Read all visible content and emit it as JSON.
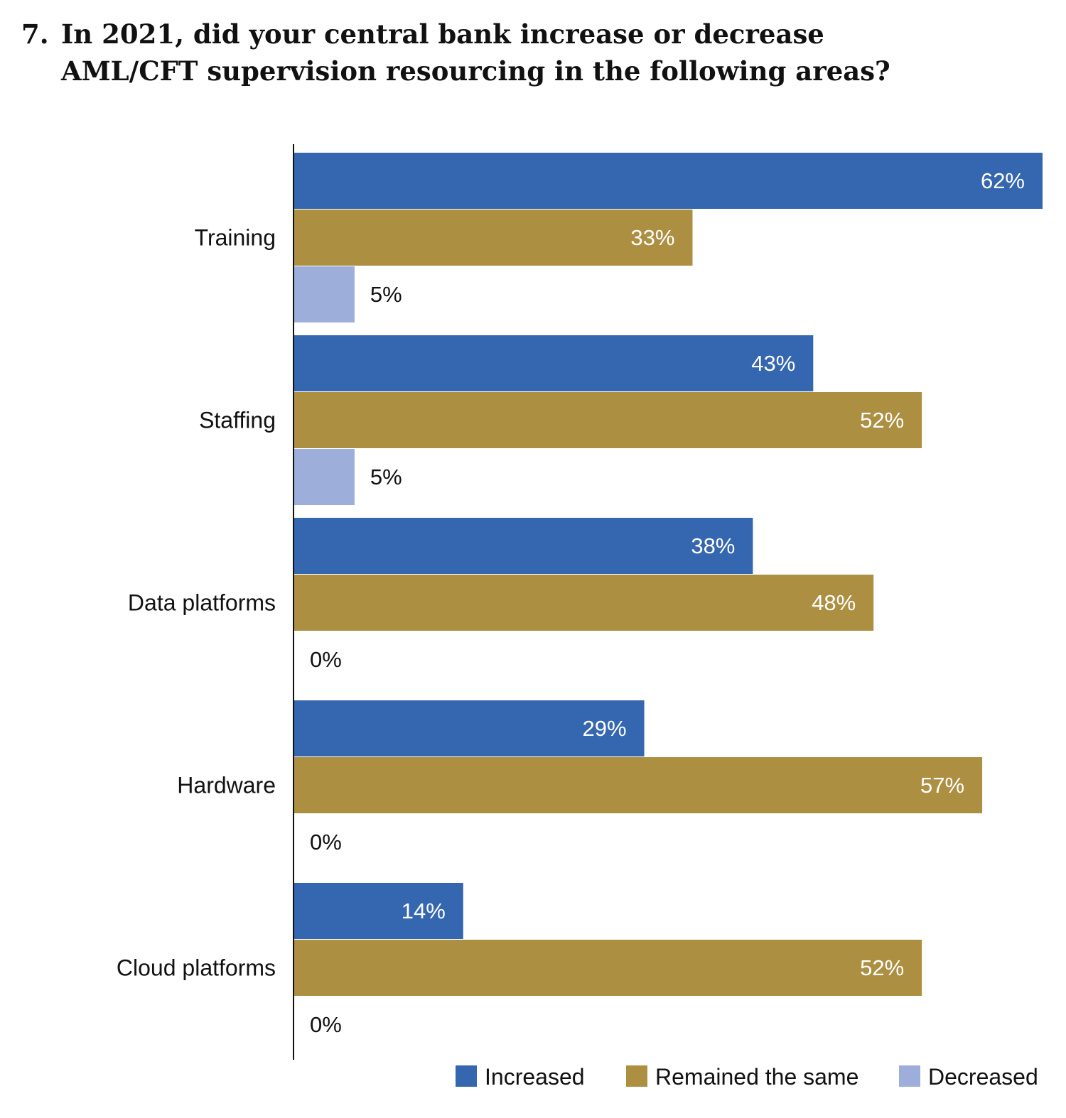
{
  "title": {
    "number": "7.",
    "line1": "In 2021, did your central bank increase or decrease",
    "line2": "AML/CFT supervision resourcing in the following areas?"
  },
  "chart_data": {
    "type": "bar",
    "orientation": "horizontal",
    "title": "7. In 2021, did your central bank increase or decrease AML/CFT supervision resourcing in the following areas?",
    "categories": [
      "Training",
      "Staffing",
      "Data platforms",
      "Hardware",
      "Cloud platforms"
    ],
    "series": [
      {
        "name": "Increased",
        "color": "#3566b0",
        "values": [
          62,
          43,
          38,
          29,
          14
        ],
        "labels": [
          "62%",
          "43%",
          "38%",
          "29%",
          "14%"
        ]
      },
      {
        "name": "Remained the same",
        "color": "#ad8f42",
        "values": [
          33,
          52,
          48,
          57,
          52
        ],
        "labels": [
          "33%",
          "52%",
          "48%",
          "57%",
          "52%"
        ]
      },
      {
        "name": "Decreased",
        "color": "#9daedb",
        "values": [
          5,
          5,
          0,
          0,
          0
        ],
        "labels": [
          "5%",
          "5%",
          "0%",
          "0%",
          "0%"
        ]
      }
    ],
    "xlim": [
      0,
      62
    ],
    "grid": false,
    "legend_position": "bottom-right"
  }
}
